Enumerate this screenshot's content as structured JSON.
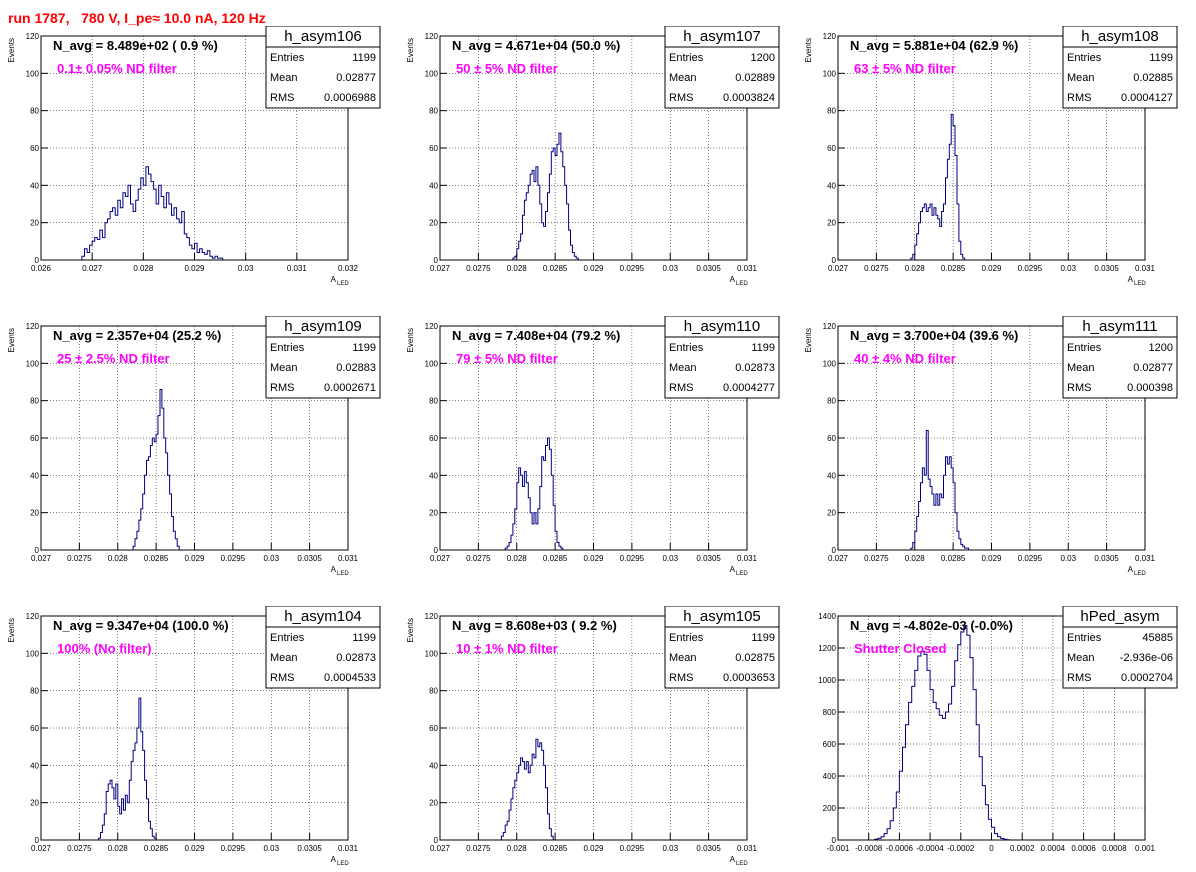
{
  "page_title": "run 1787,   780 V, I_pe≈ 10.0 nA, 120 Hz",
  "colors": {
    "histogram": "#000080",
    "annotation": "#ff00ff",
    "title": "#ff0000"
  },
  "chart_data": [
    {
      "type": "bar",
      "name": "h_asym106",
      "stats": [
        [
          "Entries",
          "1199"
        ],
        [
          "Mean",
          "0.02877"
        ],
        [
          "RMS",
          "0.0006988"
        ]
      ],
      "navg": "N_avg = 8.489e+02 ( 0.9 %)",
      "label": "0.1± 0.05% ND filter",
      "ylabel": "Events",
      "xlabel_main": "A",
      "xlabel_sub": "LED",
      "xlim": [
        0.026,
        0.032
      ],
      "ylim": [
        0,
        120
      ],
      "grid": true,
      "xticks": [
        0.026,
        0.027,
        0.028,
        0.029,
        0.03,
        0.031,
        0.032
      ],
      "xtick_labels": [
        "0.026",
        "0.027",
        "0.028",
        "0.029",
        "0.03",
        "0.031",
        "0.032"
      ],
      "yticks": [
        0,
        20,
        40,
        60,
        80,
        100,
        120
      ],
      "ytick_labels": [
        "0",
        "20",
        "40",
        "60",
        "80",
        "100",
        "120"
      ],
      "bin_start": 0.0268,
      "bin_width": 5e-05,
      "values": [
        2,
        6,
        4,
        8,
        10,
        12,
        11,
        16,
        12,
        20,
        22,
        26,
        28,
        24,
        32,
        28,
        36,
        34,
        40,
        30,
        26,
        32,
        38,
        44,
        40,
        50,
        46,
        42,
        38,
        30,
        40,
        34,
        28,
        36,
        30,
        24,
        28,
        22,
        20,
        26,
        14,
        12,
        8,
        6,
        9,
        4,
        6,
        4,
        3,
        5,
        2,
        1,
        2,
        1,
        1
      ]
    },
    {
      "type": "bar",
      "name": "h_asym107",
      "stats": [
        [
          "Entries",
          "1200"
        ],
        [
          "Mean",
          "0.02889"
        ],
        [
          "RMS",
          "0.0003824"
        ]
      ],
      "navg": "N_avg = 4.671e+04 (50.0 %)",
      "label": "50 ± 5% ND filter",
      "ylabel": "Events",
      "xlabel_main": "A",
      "xlabel_sub": "LED",
      "xlim": [
        0.027,
        0.031
      ],
      "ylim": [
        0,
        120
      ],
      "grid": true,
      "xticks": [
        0.027,
        0.0275,
        0.028,
        0.0285,
        0.029,
        0.0295,
        0.03,
        0.0305,
        0.031
      ],
      "xtick_labels": [
        "0.027",
        "0.0275",
        "0.028",
        "0.0285",
        "0.029",
        "0.0295",
        "0.03",
        "0.0305",
        "0.031"
      ],
      "yticks": [
        0,
        20,
        40,
        60,
        80,
        100,
        120
      ],
      "ytick_labels": [
        "0",
        "20",
        "40",
        "60",
        "80",
        "100",
        "120"
      ],
      "bin_start": 0.02795,
      "bin_width": 2.5e-05,
      "values": [
        1,
        2,
        6,
        10,
        14,
        24,
        32,
        36,
        40,
        46,
        48,
        42,
        50,
        40,
        30,
        20,
        18,
        26,
        36,
        46,
        58,
        60,
        56,
        62,
        68,
        58,
        50,
        40,
        30,
        16,
        8,
        4,
        2,
        1
      ]
    },
    {
      "type": "bar",
      "name": "h_asym108",
      "stats": [
        [
          "Entries",
          "1199"
        ],
        [
          "Mean",
          "0.02885"
        ],
        [
          "RMS",
          "0.0004127"
        ]
      ],
      "navg": "N_avg = 5.881e+04 (62.9 %)",
      "label": "63 ± 5% ND filter",
      "ylabel": "Events",
      "xlabel_main": "A",
      "xlabel_sub": "LED",
      "xlim": [
        0.027,
        0.031
      ],
      "ylim": [
        0,
        120
      ],
      "grid": true,
      "xticks": [
        0.027,
        0.0275,
        0.028,
        0.0285,
        0.029,
        0.0295,
        0.03,
        0.0305,
        0.031
      ],
      "xtick_labels": [
        "0.027",
        "0.0275",
        "0.028",
        "0.0285",
        "0.029",
        "0.0295",
        "0.03",
        "0.0305",
        "0.031"
      ],
      "yticks": [
        0,
        20,
        40,
        60,
        80,
        100,
        120
      ],
      "ytick_labels": [
        "0",
        "20",
        "40",
        "60",
        "80",
        "100",
        "120"
      ],
      "bin_start": 0.02795,
      "bin_width": 2.5e-05,
      "values": [
        1,
        3,
        8,
        14,
        20,
        26,
        28,
        30,
        26,
        28,
        30,
        24,
        28,
        24,
        22,
        18,
        26,
        30,
        44,
        54,
        62,
        78,
        72,
        56,
        30,
        10,
        3,
        1
      ]
    },
    {
      "type": "bar",
      "name": "h_asym109",
      "stats": [
        [
          "Entries",
          "1199"
        ],
        [
          "Mean",
          "0.02883"
        ],
        [
          "RMS",
          "0.0002671"
        ]
      ],
      "navg": "N_avg = 2.357e+04 (25.2 %)",
      "label": "25 ± 2.5% ND filter",
      "ylabel": "Events",
      "xlabel_main": "A",
      "xlabel_sub": "LED",
      "xlim": [
        0.027,
        0.031
      ],
      "ylim": [
        0,
        120
      ],
      "grid": true,
      "xticks": [
        0.027,
        0.0275,
        0.028,
        0.0285,
        0.029,
        0.0295,
        0.03,
        0.0305,
        0.031
      ],
      "xtick_labels": [
        "0.027",
        "0.0275",
        "0.028",
        "0.0285",
        "0.029",
        "0.0295",
        "0.03",
        "0.0305",
        "0.031"
      ],
      "yticks": [
        0,
        20,
        40,
        60,
        80,
        100,
        120
      ],
      "ytick_labels": [
        "0",
        "20",
        "40",
        "60",
        "80",
        "100",
        "120"
      ],
      "bin_start": 0.0282,
      "bin_width": 2.5e-05,
      "values": [
        2,
        6,
        10,
        16,
        22,
        30,
        40,
        48,
        50,
        56,
        60,
        58,
        62,
        72,
        86,
        76,
        60,
        52,
        40,
        30,
        18,
        10,
        6,
        2
      ]
    },
    {
      "type": "bar",
      "name": "h_asym110",
      "stats": [
        [
          "Entries",
          "1199"
        ],
        [
          "Mean",
          "0.02873"
        ],
        [
          "RMS",
          "0.0004277"
        ]
      ],
      "navg": "N_avg = 7.408e+04 (79.2 %)",
      "label": "79 ± 5% ND filter",
      "ylabel": "Events",
      "xlabel_main": "A",
      "xlabel_sub": "LED",
      "xlim": [
        0.027,
        0.031
      ],
      "ylim": [
        0,
        120
      ],
      "grid": true,
      "xticks": [
        0.027,
        0.0275,
        0.028,
        0.0285,
        0.029,
        0.0295,
        0.03,
        0.0305,
        0.031
      ],
      "xtick_labels": [
        "0.027",
        "0.0275",
        "0.028",
        "0.0285",
        "0.029",
        "0.0295",
        "0.03",
        "0.0305",
        "0.031"
      ],
      "yticks": [
        0,
        20,
        40,
        60,
        80,
        100,
        120
      ],
      "ytick_labels": [
        "0",
        "20",
        "40",
        "60",
        "80",
        "100",
        "120"
      ],
      "bin_start": 0.02785,
      "bin_width": 2.5e-05,
      "values": [
        1,
        2,
        4,
        8,
        14,
        22,
        36,
        44,
        40,
        34,
        42,
        36,
        28,
        20,
        14,
        20,
        14,
        22,
        34,
        50,
        48,
        56,
        60,
        54,
        40,
        24,
        10,
        4,
        2,
        1
      ]
    },
    {
      "type": "bar",
      "name": "h_asym111",
      "stats": [
        [
          "Entries",
          "1200"
        ],
        [
          "Mean",
          "0.02877"
        ],
        [
          "RMS",
          "0.000398"
        ]
      ],
      "navg": "N_avg = 3.700e+04 (39.6 %)",
      "label": "40 ± 4% ND filter",
      "ylabel": "Events",
      "xlabel_main": "A",
      "xlabel_sub": "LED",
      "xlim": [
        0.027,
        0.031
      ],
      "ylim": [
        0,
        120
      ],
      "grid": true,
      "xticks": [
        0.027,
        0.0275,
        0.028,
        0.0285,
        0.029,
        0.0295,
        0.03,
        0.0305,
        0.031
      ],
      "xtick_labels": [
        "0.027",
        "0.0275",
        "0.028",
        "0.0285",
        "0.029",
        "0.0295",
        "0.03",
        "0.0305",
        "0.031"
      ],
      "yticks": [
        0,
        20,
        40,
        60,
        80,
        100,
        120
      ],
      "ytick_labels": [
        "0",
        "20",
        "40",
        "60",
        "80",
        "100",
        "120"
      ],
      "bin_start": 0.02795,
      "bin_width": 2.5e-05,
      "values": [
        1,
        4,
        10,
        18,
        26,
        36,
        44,
        40,
        64,
        38,
        34,
        30,
        24,
        30,
        24,
        30,
        28,
        40,
        50,
        46,
        50,
        44,
        36,
        20,
        10,
        6,
        3,
        2,
        1,
        1
      ]
    },
    {
      "type": "bar",
      "name": "h_asym104",
      "stats": [
        [
          "Entries",
          "1199"
        ],
        [
          "Mean",
          "0.02873"
        ],
        [
          "RMS",
          "0.0004533"
        ]
      ],
      "navg": "N_avg = 9.347e+04 (100.0 %)",
      "label": "100% (No filter)",
      "ylabel": "Events",
      "xlabel_main": "A",
      "xlabel_sub": "LED",
      "xlim": [
        0.027,
        0.031
      ],
      "ylim": [
        0,
        120
      ],
      "grid": true,
      "xticks": [
        0.027,
        0.0275,
        0.028,
        0.0285,
        0.029,
        0.0295,
        0.03,
        0.0305,
        0.031
      ],
      "xtick_labels": [
        "0.027",
        "0.0275",
        "0.028",
        "0.0285",
        "0.029",
        "0.0295",
        "0.03",
        "0.0305",
        "0.031"
      ],
      "yticks": [
        0,
        20,
        40,
        60,
        80,
        100,
        120
      ],
      "ytick_labels": [
        "0",
        "20",
        "40",
        "60",
        "80",
        "100",
        "120"
      ],
      "bin_start": 0.02775,
      "bin_width": 2.5e-05,
      "values": [
        1,
        4,
        8,
        14,
        26,
        30,
        32,
        28,
        22,
        30,
        18,
        14,
        22,
        16,
        24,
        20,
        32,
        42,
        48,
        52,
        60,
        76,
        58,
        48,
        32,
        22,
        10,
        6,
        2,
        1
      ]
    },
    {
      "type": "bar",
      "name": "h_asym105",
      "stats": [
        [
          "Entries",
          "1199"
        ],
        [
          "Mean",
          "0.02875"
        ],
        [
          "RMS",
          "0.0003653"
        ]
      ],
      "navg": "N_avg = 8.608e+03 ( 9.2 %)",
      "label": "10 ± 1% ND filter",
      "ylabel": "Events",
      "xlabel_main": "A",
      "xlabel_sub": "LED",
      "xlim": [
        0.027,
        0.031
      ],
      "ylim": [
        0,
        120
      ],
      "grid": true,
      "xticks": [
        0.027,
        0.0275,
        0.028,
        0.0285,
        0.029,
        0.0295,
        0.03,
        0.0305,
        0.031
      ],
      "xtick_labels": [
        "0.027",
        "0.0275",
        "0.028",
        "0.0285",
        "0.029",
        "0.0295",
        "0.03",
        "0.0305",
        "0.031"
      ],
      "yticks": [
        0,
        20,
        40,
        60,
        80,
        100,
        120
      ],
      "ytick_labels": [
        "0",
        "20",
        "40",
        "60",
        "80",
        "100",
        "120"
      ],
      "bin_start": 0.0278,
      "bin_width": 2.5e-05,
      "values": [
        2,
        4,
        8,
        10,
        16,
        22,
        28,
        32,
        36,
        40,
        44,
        42,
        38,
        42,
        36,
        40,
        46,
        44,
        54,
        50,
        52,
        48,
        40,
        28,
        14,
        6,
        2
      ]
    },
    {
      "type": "bar",
      "name": "hPed_asym",
      "stats": [
        [
          "Entries",
          "45885"
        ],
        [
          "Mean",
          "-2.936e-06"
        ],
        [
          "RMS",
          "0.0002704"
        ]
      ],
      "navg": "N_avg = -4.802e-03 (-0.0%)",
      "label": "Shutter Closed",
      "ylabel": "",
      "xlabel_main": "",
      "xlabel_sub": "",
      "xlim": [
        -0.001,
        0.001
      ],
      "ylim": [
        0,
        1400
      ],
      "grid": true,
      "xticks": [
        -0.001,
        -0.0008,
        -0.0006,
        -0.0004,
        -0.0002,
        0,
        0.0002,
        0.0004,
        0.0006,
        0.0008,
        0.001
      ],
      "xtick_labels": [
        "-0.001",
        "-0.0008",
        "-0.0006",
        "-0.0004",
        "-0.0002",
        "0",
        "0.0002",
        "0.0004",
        "0.0006",
        "0.0008",
        "0.001"
      ],
      "yticks": [
        0,
        200,
        400,
        600,
        800,
        1000,
        1200,
        1400
      ],
      "ytick_labels": [
        "0",
        "200",
        "400",
        "600",
        "800",
        "1000",
        "1200",
        "1400"
      ],
      "bin_start": -0.00076,
      "bin_width": 2e-05,
      "values": [
        5,
        10,
        20,
        40,
        70,
        120,
        200,
        300,
        430,
        580,
        720,
        860,
        960,
        1060,
        1150,
        1180,
        1160,
        1060,
        940,
        860,
        820,
        780,
        760,
        800,
        850,
        960,
        1120,
        1220,
        1300,
        1340,
        1280,
        1140,
        940,
        720,
        520,
        340,
        220,
        130,
        80,
        40,
        20,
        10,
        5,
        2
      ]
    }
  ]
}
